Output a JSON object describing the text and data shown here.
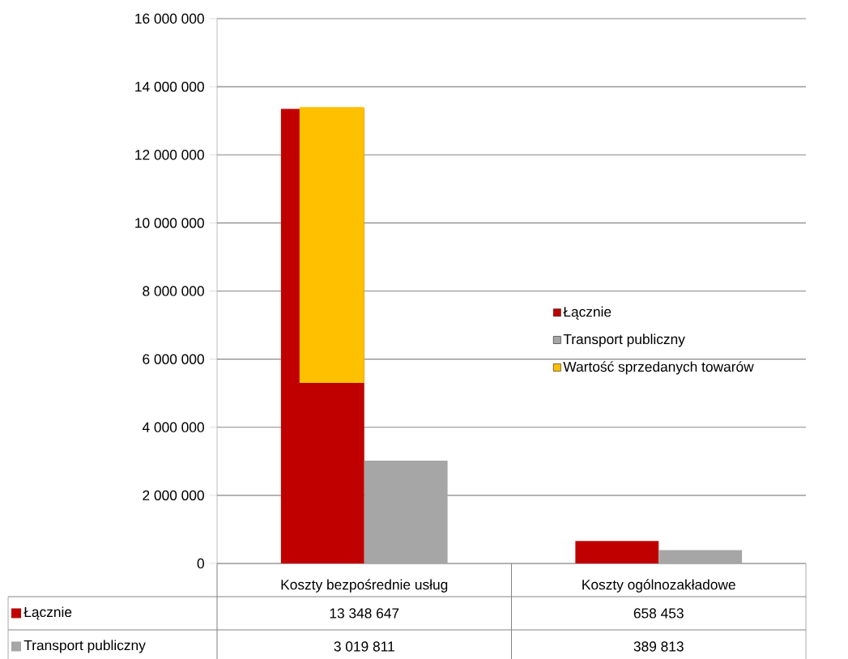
{
  "chart_data": {
    "type": "bar",
    "categories": [
      "Koszty bezpośrednie usług",
      "Koszty ogólnozakładowe"
    ],
    "series": [
      {
        "name": "Łącznie",
        "color": "#c00000",
        "values": [
          13348647,
          658453
        ],
        "value_labels": [
          "13 348 647",
          "658 453"
        ]
      },
      {
        "name": "Transport publiczny",
        "color": "#a6a6a6",
        "values": [
          3019811,
          389813
        ],
        "value_labels": [
          "3 019 811",
          "389 813"
        ]
      },
      {
        "name": "Wartość sprzedanych towarów",
        "color": "#ffc000",
        "values": [
          8100000,
          null
        ],
        "base": [
          5300000,
          null
        ]
      }
    ],
    "ylim": [
      0,
      16000000
    ],
    "yticks": [
      0,
      {
        "value": 2000000,
        "label": "2 000 000"
      },
      {
        "value": 4000000,
        "label": "4 000 000"
      },
      {
        "value": 6000000,
        "label": "6 000 000"
      },
      {
        "value": 8000000,
        "label": "8 000 000"
      },
      {
        "value": 10000000,
        "label": "10 000 000"
      },
      {
        "value": 12000000,
        "label": "12 000 000"
      },
      {
        "value": 14000000,
        "label": "14 000 000"
      },
      {
        "value": 16000000,
        "label": "16 000 000"
      }
    ],
    "grid": "y",
    "legend": "right"
  }
}
